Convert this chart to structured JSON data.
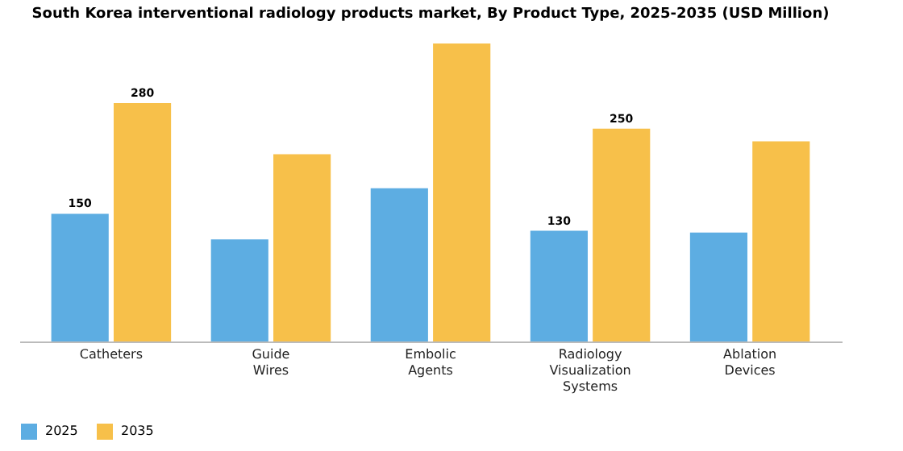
{
  "chart_data": {
    "type": "bar",
    "title": "South Korea interventional radiology products market, By Product Type, 2025-2035 (USD Million)",
    "categories": [
      "Catheters",
      "Guide Wires",
      "Embolic Agents",
      "Radiology Visualization Systems",
      "Ablation Devices"
    ],
    "series": [
      {
        "name": "2025",
        "color": "#5dade2",
        "values": [
          150,
          120,
          180,
          130,
          128
        ],
        "value_labels": [
          "150",
          null,
          null,
          "130",
          null
        ]
      },
      {
        "name": "2035",
        "color": "#f7c04a",
        "values": [
          280,
          220,
          350,
          250,
          235
        ],
        "value_labels": [
          "280",
          null,
          null,
          "250",
          null
        ]
      }
    ],
    "legend": "bottom"
  }
}
